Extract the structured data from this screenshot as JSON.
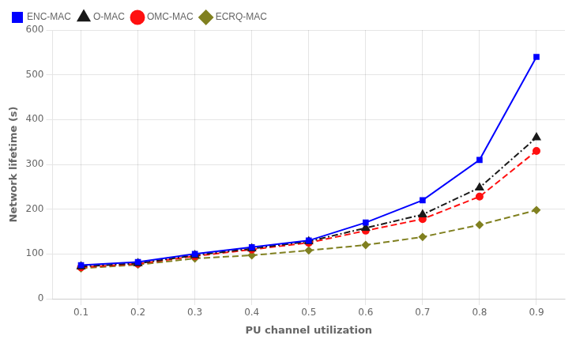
{
  "chart_data": {
    "type": "line",
    "xlabel": "PU channel utilization",
    "ylabel": "Network lifetime (s)",
    "x": [
      0.1,
      0.2,
      0.3,
      0.4,
      0.5,
      0.6,
      0.7,
      0.8,
      0.9
    ],
    "series": [
      {
        "name": "ENC-MAC",
        "color": "#0000FF",
        "marker": "square",
        "line_style": "solid",
        "values": [
          75,
          82,
          100,
          115,
          130,
          170,
          220,
          310,
          540
        ]
      },
      {
        "name": "O-MAC",
        "color": "#1A1A1A",
        "marker": "triangle",
        "line_style": "dashdot",
        "values": [
          72,
          79,
          97,
          112,
          128,
          158,
          188,
          248,
          360
        ]
      },
      {
        "name": "OMC-MAC",
        "color": "#FF1010",
        "marker": "circle",
        "line_style": "dashed",
        "values": [
          70,
          78,
          95,
          110,
          125,
          152,
          178,
          228,
          330
        ]
      },
      {
        "name": "ECRQ-MAC",
        "color": "#808020",
        "marker": "diamond",
        "line_style": "dashed",
        "values": [
          68,
          76,
          90,
          97,
          108,
          120,
          138,
          165,
          198
        ]
      }
    ],
    "xlim": [
      0.05,
      0.95
    ],
    "xticks": [
      0.1,
      0.2,
      0.3,
      0.4,
      0.5,
      0.6,
      0.7,
      0.8,
      0.9
    ],
    "ylim": [
      0,
      600
    ],
    "yticks": [
      0,
      100,
      200,
      300,
      400,
      500,
      600
    ],
    "grid": true,
    "legend": "upper left"
  }
}
